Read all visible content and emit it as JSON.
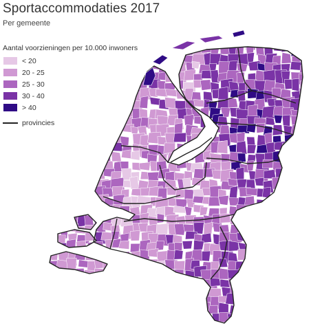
{
  "title": "Sportaccommodaties 2017",
  "subtitle": "Per gemeente",
  "legend": {
    "title": "Aantal voorzieningen per 10.000 inwoners",
    "classes": [
      {
        "label": "< 20",
        "color": "#e6c8e6"
      },
      {
        "label": "20 - 25",
        "color": "#d099d3"
      },
      {
        "label": "25 - 30",
        "color": "#ac66bf"
      },
      {
        "label": "30 - 40",
        "color": "#7a33a6"
      },
      {
        "label": "> 40",
        "color": "#2f0b85"
      }
    ],
    "province_label": "provincies"
  },
  "colors": {
    "border": "#ffffff",
    "province_line": "#222222",
    "water": "#ffffff"
  }
}
